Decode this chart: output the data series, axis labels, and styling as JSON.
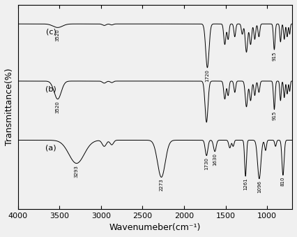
{
  "xlabel": "Wavenumeber(cm⁻¹)",
  "ylabel": "Transmittance(%)",
  "xlim": [
    4000,
    700
  ],
  "background_color": "#f0f0f0",
  "xticks": [
    4000,
    3500,
    3000,
    2500,
    2000,
    1500,
    1000
  ],
  "off_a": 0.07,
  "off_b": 0.38,
  "off_c": 0.68,
  "scale": 0.27
}
